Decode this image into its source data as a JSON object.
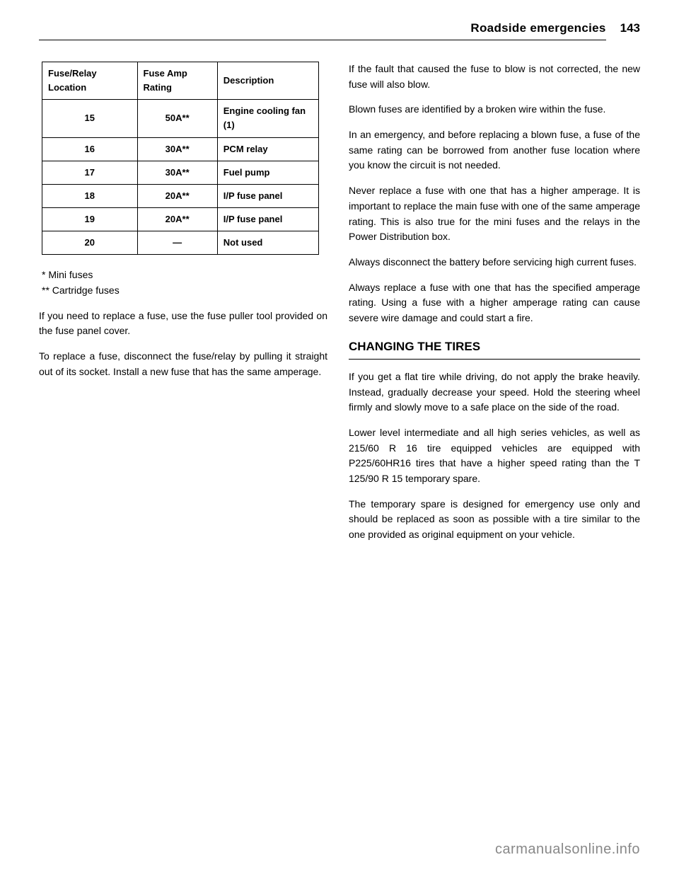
{
  "header": {
    "title": "Roadside emergencies",
    "page_number": "143"
  },
  "table": {
    "columns": [
      "Fuse/Relay Location",
      "Fuse Amp Rating",
      "Description"
    ],
    "rows": [
      [
        "15",
        "50A**",
        "Engine cooling fan (1)"
      ],
      [
        "16",
        "30A**",
        "PCM relay"
      ],
      [
        "17",
        "30A**",
        "Fuel pump"
      ],
      [
        "18",
        "20A**",
        "I/P fuse panel"
      ],
      [
        "19",
        "20A**",
        "I/P fuse panel"
      ],
      [
        "20",
        "—",
        "Not used"
      ]
    ],
    "footnotes": [
      "* Mini fuses",
      "** Cartridge fuses"
    ]
  },
  "left_col": [
    "If you need to replace a fuse, use the fuse puller tool provided on the fuse panel cover.",
    "To replace a fuse, disconnect the fuse/relay by pulling it straight out of its socket. Install a new fuse that has the same amperage."
  ],
  "right_col_top": [
    "If the fault that caused the fuse to blow is not corrected, the new fuse will also blow.",
    "Blown fuses are identified by a broken wire within the fuse.",
    "In an emergency, and before replacing a blown fuse, a fuse of the same rating can be borrowed from another fuse location where you know the circuit is not needed.",
    "Never replace a fuse with one that has a higher amperage. It is important to replace the main fuse with one of the same amperage rating. This is also true for the mini fuses and the relays in the Power Distribution box.",
    "Always disconnect the battery before servicing high current fuses.",
    "Always replace a fuse with one that has the specified amperage rating. Using a fuse with a higher amperage rating can cause severe wire damage and could start a fire."
  ],
  "section_title": "CHANGING THE TIRES",
  "right_col_bottom": [
    "If you get a flat tire while driving, do not apply the brake heavily. Instead, gradually decrease your speed. Hold the steering wheel firmly and slowly move to a safe place on the side of the road.",
    "Lower level intermediate and all high series vehicles, as well as 215/60 R 16 tire equipped vehicles are equipped with P225/60HR16 tires that have a higher speed rating than the T 125/90 R 15 temporary spare.",
    "The temporary spare is designed for emergency use only and should be replaced as soon as possible with a tire similar to the one provided as original equipment on your vehicle."
  ],
  "watermark": "carmanualsonline.info"
}
